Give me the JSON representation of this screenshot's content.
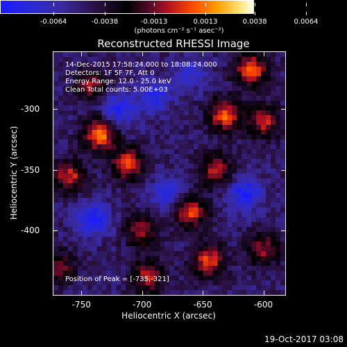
{
  "chart_data": {
    "type": "heatmap",
    "title": "Reconstructed RHESSI Image",
    "xlabel": "Heliocentric X (arcsec)",
    "ylabel": "Heliocentric Y (arcsec)",
    "x_ticks": [
      "-750",
      "-700",
      "-650",
      "-600"
    ],
    "x_tick_values": [
      -750,
      -700,
      -650,
      -600
    ],
    "y_ticks": [
      "-300",
      "-350",
      "-400"
    ],
    "y_tick_values": [
      -300,
      -350,
      -400
    ],
    "xlim": [
      -773,
      -582
    ],
    "ylim": [
      -453,
      -253
    ],
    "colorbar": {
      "ticks": [
        "-0.0064",
        "-0.0038",
        "-0.0013",
        "0.0013",
        "0.0038",
        "0.0064"
      ],
      "tick_values": [
        -0.0064,
        -0.0038,
        -0.0013,
        0.0013,
        0.0038,
        0.0064
      ],
      "range": [
        -0.0064,
        0.0064
      ],
      "units": "(photons cm⁻² s⁻¹ asec⁻²)"
    },
    "annotations": [
      "14-Dec-2015 17:58:24.000 to 18:08:24.000",
      "Detectors: 1F 5F 7F, Att 0",
      "Energy Range: 12.0 - 25.0 keV",
      "Clean    Total counts: 5.00E+03"
    ],
    "peak_text": "Position of Peak = [-735,-321]",
    "blobs": [
      {
        "x": -735,
        "y": -321,
        "value": 0.0064
      },
      {
        "x": -760,
        "y": -355,
        "value": 0.005
      },
      {
        "x": -712,
        "y": -345,
        "value": 0.0055
      },
      {
        "x": -742,
        "y": -280,
        "value": 0.004
      },
      {
        "x": -632,
        "y": -305,
        "value": 0.0058
      },
      {
        "x": -610,
        "y": -268,
        "value": 0.006
      },
      {
        "x": -600,
        "y": -310,
        "value": 0.0048
      },
      {
        "x": -640,
        "y": -350,
        "value": 0.0045
      },
      {
        "x": -660,
        "y": -385,
        "value": 0.0052
      },
      {
        "x": -645,
        "y": -425,
        "value": 0.0055
      },
      {
        "x": -700,
        "y": -400,
        "value": 0.004
      },
      {
        "x": -695,
        "y": -438,
        "value": 0.0045
      },
      {
        "x": -600,
        "y": -415,
        "value": 0.004
      },
      {
        "x": -768,
        "y": -430,
        "value": 0.0035
      },
      {
        "x": -690,
        "y": -290,
        "value": -0.003
      },
      {
        "x": -720,
        "y": -300,
        "value": -0.0035
      },
      {
        "x": -740,
        "y": -390,
        "value": -0.004
      },
      {
        "x": -680,
        "y": -370,
        "value": -0.003
      },
      {
        "x": -615,
        "y": -370,
        "value": -0.0038
      },
      {
        "x": -660,
        "y": -270,
        "value": -0.0025
      }
    ]
  },
  "footer": "19-Oct-2017 03:08"
}
